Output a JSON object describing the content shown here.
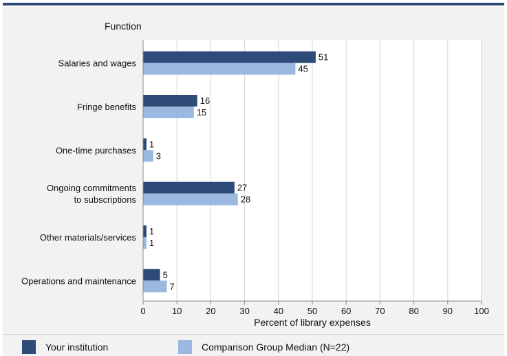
{
  "chart_data": {
    "type": "bar",
    "orientation": "horizontal",
    "title": "Function",
    "xlabel": "Percent of library expenses",
    "xlim": [
      0,
      100
    ],
    "ticks": [
      0,
      10,
      20,
      30,
      40,
      50,
      60,
      70,
      80,
      90,
      100
    ],
    "categories": [
      [
        "Salaries and wages"
      ],
      [
        "Fringe benefits"
      ],
      [
        "One-time purchases"
      ],
      [
        "Ongoing commitments",
        "to subscriptions"
      ],
      [
        "Other materials/services"
      ],
      [
        "Operations and maintenance"
      ]
    ],
    "series": [
      {
        "name": "Your institution",
        "color": "#2e4a78",
        "values": [
          51,
          16,
          1,
          27,
          1,
          5
        ]
      },
      {
        "name": "Comparison Group Median (N=22)",
        "color": "#9ab8e0",
        "values": [
          45,
          15,
          3,
          28,
          1,
          7
        ]
      }
    ],
    "grid": true,
    "legend_position": "bottom"
  }
}
